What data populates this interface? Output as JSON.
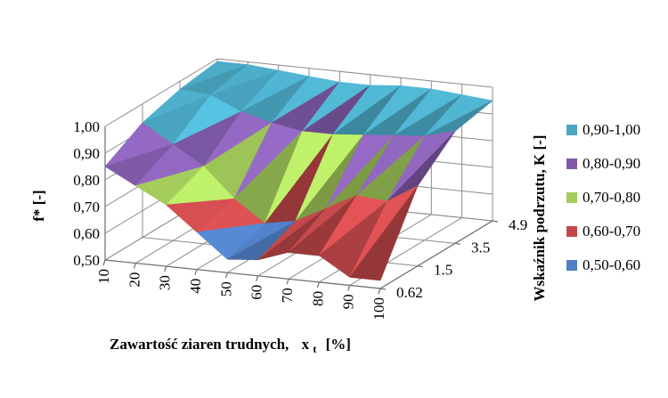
{
  "chart_data": {
    "type": "surface",
    "title": "",
    "xlabel": "Zawartość ziaren trudnych,",
    "xlabel_symbol": "x",
    "xlabel_subscript": "t",
    "xlabel_unit": "[%]",
    "ylabel": "f* [-]",
    "zlabel": "Wskaźnik podrzutu,  K [-]",
    "x_ticks": [
      "10",
      "20",
      "30",
      "40",
      "50",
      "60",
      "70",
      "80",
      "90",
      "100"
    ],
    "depth_ticks": [
      "0.62",
      "1.5",
      "3.5",
      "4.9"
    ],
    "y_ticks": [
      "0,50",
      "0,60",
      "0,70",
      "0,80",
      "0,90",
      "1,00"
    ],
    "ylim": [
      0.5,
      1.0
    ],
    "grid": true,
    "legend_position": "right",
    "legend": [
      {
        "label": "0,90-1,00",
        "color": "#4aa7c2"
      },
      {
        "label": "0,80-0,90",
        "color": "#7f5aa8"
      },
      {
        "label": "0,70-0,80",
        "color": "#a3cc5a"
      },
      {
        "label": "0,60-0,70",
        "color": "#c4484a"
      },
      {
        "label": "0,50-0,60",
        "color": "#4f7fc4"
      }
    ],
    "series": [
      {
        "name": "0.62",
        "values": [
          0.85,
          0.79,
          0.73,
          0.64,
          0.55,
          0.56,
          0.6,
          0.6,
          0.53,
          0.53
        ]
      },
      {
        "name": "1.5",
        "values": [
          0.93,
          0.86,
          0.79,
          0.68,
          0.6,
          0.62,
          0.68,
          0.74,
          0.73,
          0.8
        ]
      },
      {
        "name": "3.5",
        "values": [
          0.97,
          0.96,
          0.91,
          0.88,
          0.86,
          0.86,
          0.87,
          0.88,
          0.89,
          0.92
        ]
      },
      {
        "name": "4.9",
        "values": [
          0.99,
          0.99,
          0.98,
          0.97,
          0.96,
          0.96,
          0.97,
          0.97,
          0.96,
          0.95
        ]
      }
    ]
  }
}
